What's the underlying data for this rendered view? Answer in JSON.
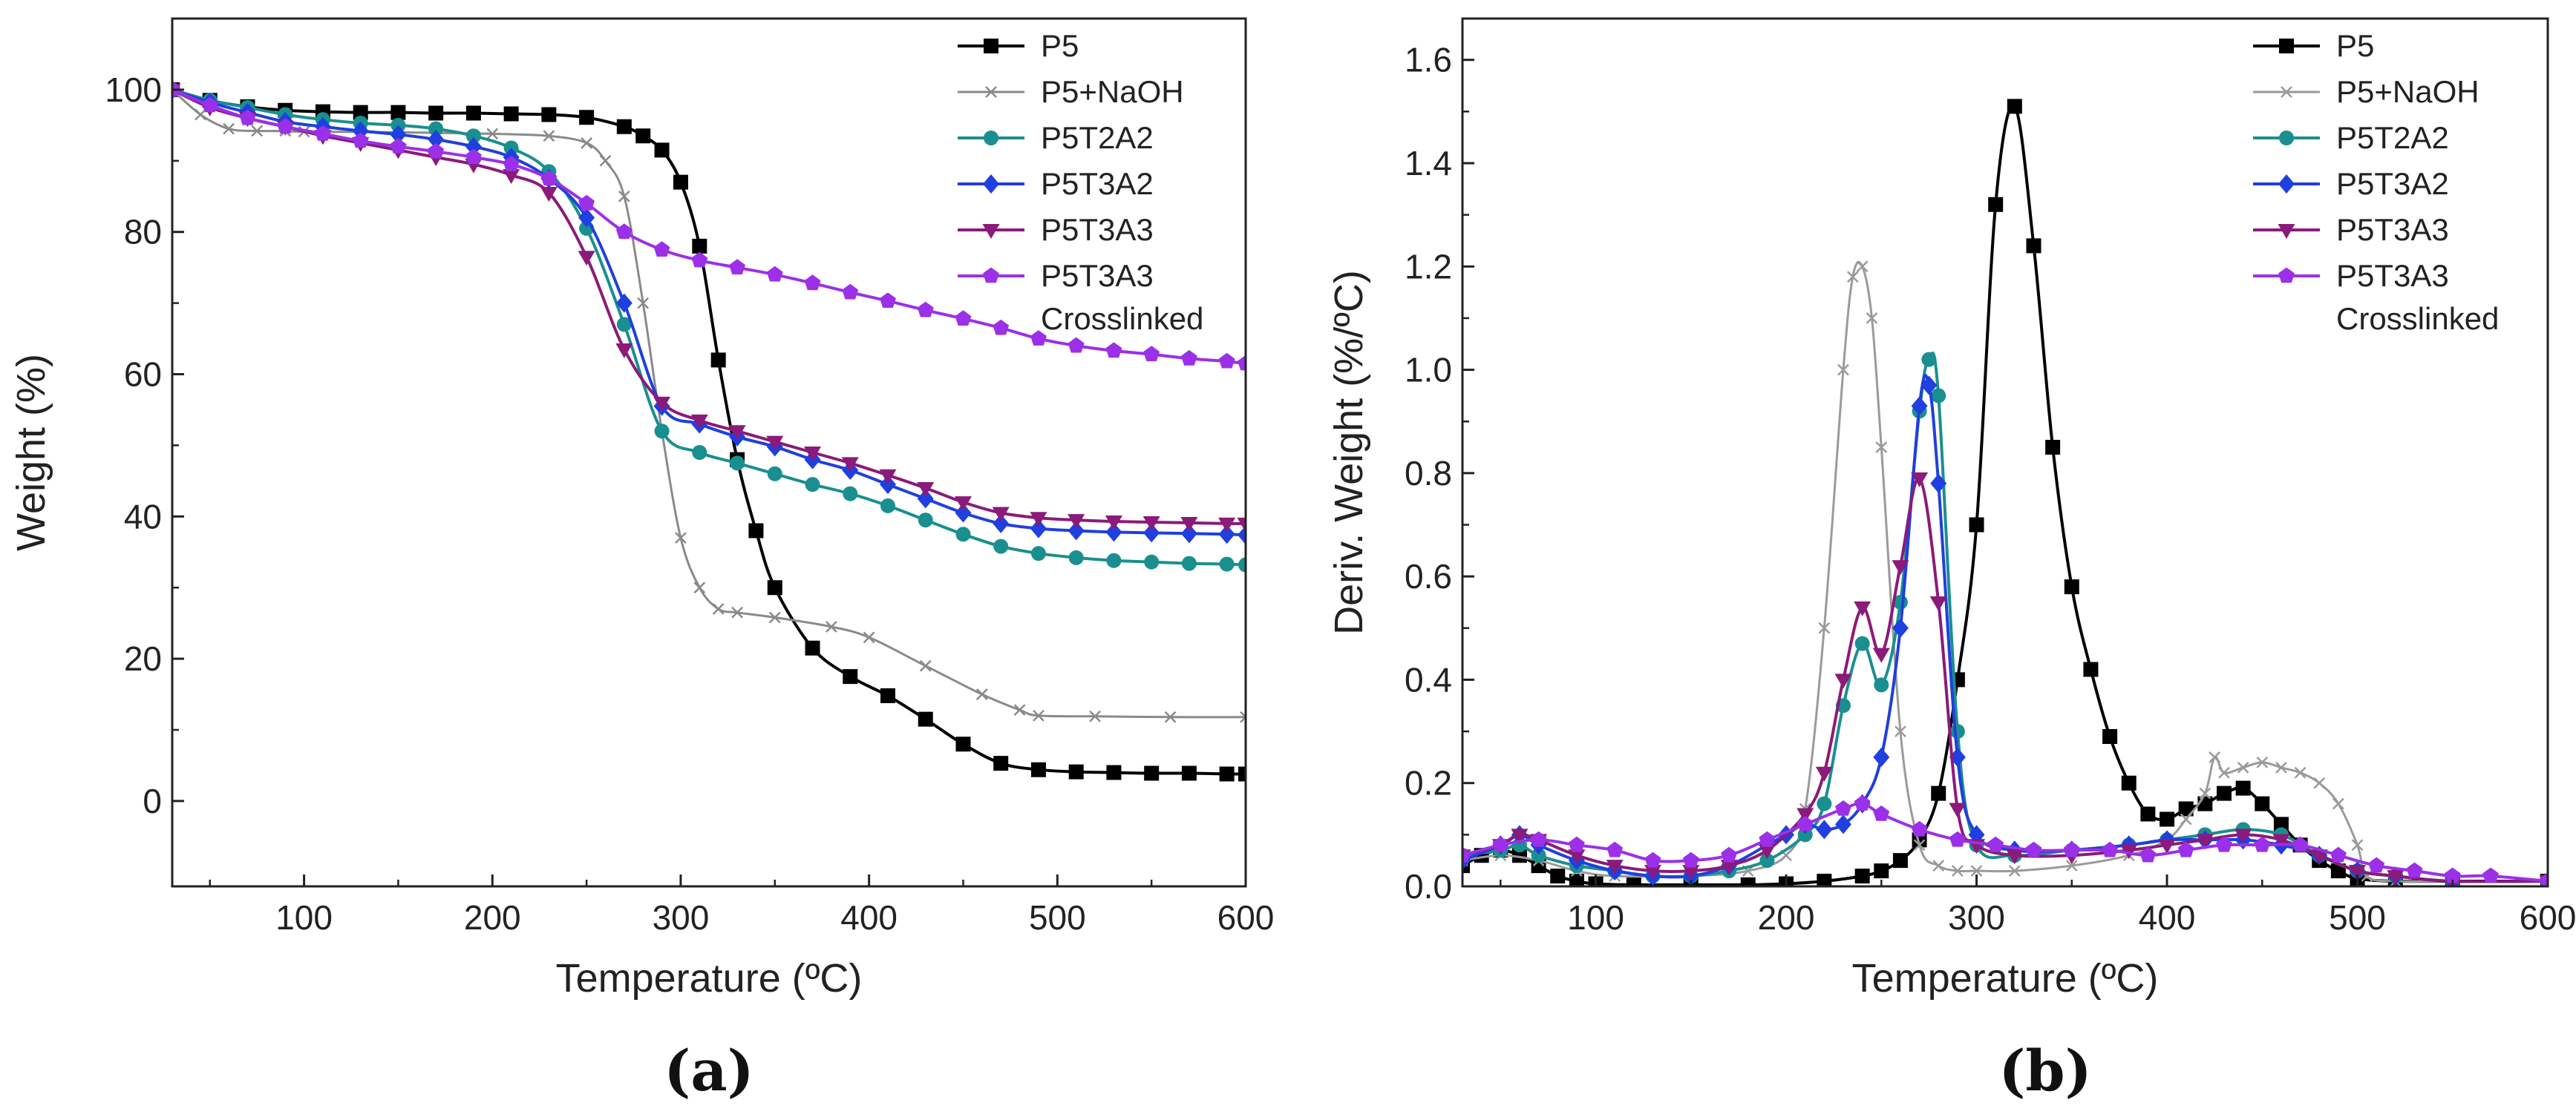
{
  "chart_data": [
    {
      "type": "line",
      "panel_label": "(a)",
      "xlabel": "Temperature (ºC)",
      "ylabel": "Weight (%)",
      "xlim": [
        30,
        600
      ],
      "ylim": [
        -12,
        110
      ],
      "xticks": [
        100,
        200,
        300,
        400,
        500,
        600
      ],
      "yticks": [
        0,
        20,
        40,
        60,
        80,
        100
      ],
      "legend_position": "top-right",
      "series": [
        {
          "name": "P5",
          "color": "#000000",
          "marker": "square",
          "x": [
            30,
            50,
            70,
            90,
            110,
            130,
            150,
            170,
            190,
            210,
            230,
            250,
            270,
            280,
            290,
            300,
            310,
            320,
            330,
            340,
            350,
            370,
            390,
            410,
            430,
            450,
            470,
            490,
            510,
            530,
            550,
            570,
            590,
            600
          ],
          "y": [
            100,
            98.5,
            97.6,
            97.1,
            96.9,
            96.8,
            96.8,
            96.7,
            96.7,
            96.6,
            96.5,
            96.1,
            94.8,
            93.5,
            91.5,
            87,
            78,
            62,
            48,
            38,
            30,
            21.5,
            17.5,
            14.8,
            11.5,
            8,
            5.3,
            4.4,
            4.1,
            4,
            3.9,
            3.9,
            3.8,
            3.8
          ]
        },
        {
          "name": "P5+NaOH",
          "color": "#8a8a8a",
          "marker": "x",
          "x": [
            30,
            45,
            60,
            75,
            90,
            100,
            150,
            200,
            230,
            250,
            260,
            270,
            280,
            290,
            300,
            310,
            320,
            330,
            350,
            380,
            400,
            430,
            460,
            480,
            490,
            520,
            560,
            600
          ],
          "y": [
            100,
            96.5,
            94.5,
            94.2,
            94.2,
            94.1,
            94,
            93.8,
            93.5,
            92.5,
            90,
            85,
            70,
            52,
            37,
            30,
            27,
            26.5,
            25.8,
            24.5,
            23,
            19,
            15,
            12.8,
            12,
            11.9,
            11.8,
            11.8
          ]
        },
        {
          "name": "P5T2A2",
          "color": "#1a8f8f",
          "marker": "circle",
          "x": [
            30,
            50,
            70,
            90,
            110,
            130,
            150,
            170,
            190,
            210,
            230,
            250,
            270,
            290,
            310,
            330,
            350,
            370,
            390,
            410,
            430,
            450,
            470,
            490,
            510,
            530,
            550,
            570,
            590,
            600
          ],
          "y": [
            100,
            98.5,
            97.5,
            96.5,
            95.8,
            95.3,
            95,
            94.5,
            93.5,
            91.8,
            88.5,
            80.5,
            67,
            52,
            49,
            47.5,
            46,
            44.5,
            43.2,
            41.5,
            39.5,
            37.5,
            35.8,
            34.8,
            34.2,
            33.8,
            33.6,
            33.4,
            33.3,
            33.2
          ]
        },
        {
          "name": "P5T3A2",
          "color": "#1f3fe0",
          "marker": "diamond",
          "x": [
            30,
            50,
            70,
            90,
            110,
            130,
            150,
            170,
            190,
            210,
            230,
            250,
            270,
            290,
            310,
            330,
            350,
            370,
            390,
            410,
            430,
            450,
            470,
            490,
            510,
            530,
            550,
            570,
            590,
            600
          ],
          "y": [
            100,
            98.2,
            96.8,
            95.5,
            94.8,
            94.2,
            93.7,
            93,
            92,
            90.5,
            87.5,
            82,
            70,
            55.5,
            53,
            51.2,
            49.8,
            48,
            46.5,
            44.5,
            42.5,
            40.5,
            39,
            38.3,
            38,
            37.8,
            37.7,
            37.6,
            37.5,
            37.4
          ]
        },
        {
          "name": "P5T3A3",
          "color": "#8b1a7a",
          "marker": "triangle-down",
          "x": [
            30,
            50,
            70,
            90,
            110,
            130,
            150,
            170,
            190,
            210,
            230,
            250,
            270,
            290,
            310,
            330,
            350,
            370,
            390,
            410,
            430,
            450,
            470,
            490,
            510,
            530,
            550,
            570,
            590,
            600
          ],
          "y": [
            100,
            97.5,
            96,
            94.8,
            93.5,
            92.5,
            91.5,
            90.5,
            89.5,
            88,
            85.5,
            76.5,
            63.5,
            56,
            53.5,
            52,
            50.5,
            49,
            47.5,
            45.8,
            44,
            42,
            40.5,
            39.8,
            39.5,
            39.3,
            39.2,
            39.1,
            39,
            39
          ]
        },
        {
          "name": "P5T3A3 Crosslinked",
          "color": "#9b30e8",
          "marker": "pentagon",
          "x": [
            30,
            50,
            70,
            90,
            110,
            130,
            150,
            170,
            190,
            210,
            230,
            250,
            270,
            290,
            310,
            330,
            350,
            370,
            390,
            410,
            430,
            450,
            470,
            490,
            510,
            530,
            550,
            570,
            590,
            600
          ],
          "y": [
            100,
            97.8,
            96,
            94.8,
            93.8,
            92.8,
            92,
            91.3,
            90.5,
            89.5,
            87.5,
            84,
            80,
            77.5,
            76,
            75,
            74,
            72.8,
            71.5,
            70.3,
            69,
            67.8,
            66.5,
            65,
            64,
            63.3,
            62.8,
            62.2,
            61.8,
            61.5
          ]
        }
      ]
    },
    {
      "type": "line",
      "panel_label": "(b)",
      "xlabel": "Temperature (ºC)",
      "ylabel": "Deriv. Weight (%/ºC)",
      "xlim": [
        30,
        600
      ],
      "ylim": [
        0,
        1.68
      ],
      "xticks": [
        100,
        200,
        300,
        400,
        500,
        600
      ],
      "yticks": [
        0.0,
        0.2,
        0.4,
        0.6,
        0.8,
        1.0,
        1.2,
        1.4,
        1.6
      ],
      "legend_position": "top-right",
      "series": [
        {
          "name": "P5",
          "color": "#000000",
          "marker": "square",
          "x": [
            30,
            40,
            50,
            60,
            70,
            80,
            90,
            100,
            120,
            150,
            180,
            200,
            220,
            240,
            250,
            260,
            270,
            280,
            290,
            300,
            310,
            320,
            330,
            340,
            350,
            360,
            370,
            380,
            390,
            400,
            410,
            420,
            430,
            440,
            450,
            460,
            470,
            480,
            490,
            500,
            520,
            550,
            600
          ],
          "y": [
            0.04,
            0.06,
            0.07,
            0.06,
            0.04,
            0.02,
            0.01,
            0.005,
            0.003,
            0.003,
            0.003,
            0.005,
            0.01,
            0.02,
            0.03,
            0.05,
            0.09,
            0.18,
            0.4,
            0.7,
            1.32,
            1.51,
            1.24,
            0.85,
            0.58,
            0.42,
            0.29,
            0.2,
            0.14,
            0.13,
            0.15,
            0.16,
            0.18,
            0.19,
            0.16,
            0.12,
            0.08,
            0.05,
            0.03,
            0.015,
            0.01,
            0.01,
            0.01
          ]
        },
        {
          "name": "P5+NaOH",
          "color": "#9a9a9a",
          "marker": "x",
          "x": [
            30,
            50,
            70,
            90,
            110,
            150,
            180,
            200,
            210,
            220,
            230,
            235,
            240,
            245,
            250,
            260,
            270,
            280,
            290,
            300,
            320,
            350,
            380,
            400,
            410,
            420,
            425,
            430,
            440,
            450,
            460,
            470,
            480,
            490,
            500,
            505,
            520,
            550,
            600
          ],
          "y": [
            0.05,
            0.06,
            0.05,
            0.03,
            0.02,
            0.02,
            0.03,
            0.06,
            0.15,
            0.5,
            1.0,
            1.18,
            1.2,
            1.1,
            0.85,
            0.3,
            0.08,
            0.04,
            0.03,
            0.03,
            0.03,
            0.04,
            0.06,
            0.09,
            0.13,
            0.18,
            0.25,
            0.22,
            0.23,
            0.24,
            0.23,
            0.22,
            0.2,
            0.16,
            0.08,
            0.02,
            0.01,
            0.01,
            0.01
          ]
        },
        {
          "name": "P5T2A2",
          "color": "#1a8f8f",
          "marker": "circle",
          "x": [
            30,
            50,
            60,
            70,
            90,
            110,
            130,
            150,
            170,
            190,
            210,
            220,
            230,
            240,
            250,
            260,
            270,
            275,
            280,
            290,
            300,
            320,
            350,
            380,
            400,
            420,
            440,
            460,
            480,
            500,
            520,
            550,
            600
          ],
          "y": [
            0.06,
            0.07,
            0.08,
            0.06,
            0.04,
            0.03,
            0.02,
            0.02,
            0.03,
            0.05,
            0.1,
            0.16,
            0.35,
            0.47,
            0.39,
            0.55,
            0.92,
            1.02,
            0.95,
            0.3,
            0.08,
            0.06,
            0.07,
            0.08,
            0.09,
            0.1,
            0.11,
            0.1,
            0.06,
            0.03,
            0.02,
            0.01,
            0.01
          ]
        },
        {
          "name": "P5T3A2",
          "color": "#1f3fe0",
          "marker": "diamond",
          "x": [
            30,
            50,
            60,
            70,
            90,
            110,
            130,
            150,
            170,
            190,
            200,
            210,
            220,
            230,
            240,
            250,
            260,
            270,
            275,
            280,
            290,
            300,
            320,
            350,
            380,
            400,
            420,
            440,
            460,
            480,
            500,
            520,
            550,
            600
          ],
          "y": [
            0.05,
            0.08,
            0.1,
            0.08,
            0.05,
            0.03,
            0.02,
            0.02,
            0.04,
            0.08,
            0.1,
            0.12,
            0.11,
            0.12,
            0.16,
            0.25,
            0.5,
            0.93,
            0.97,
            0.78,
            0.25,
            0.1,
            0.07,
            0.07,
            0.08,
            0.09,
            0.09,
            0.09,
            0.08,
            0.06,
            0.03,
            0.02,
            0.01,
            0.01
          ]
        },
        {
          "name": "P5T3A3",
          "color": "#8b1a7a",
          "marker": "triangle-down",
          "x": [
            30,
            50,
            60,
            70,
            90,
            110,
            130,
            150,
            170,
            190,
            210,
            220,
            230,
            240,
            250,
            260,
            270,
            280,
            290,
            300,
            320,
            350,
            380,
            400,
            420,
            440,
            460,
            480,
            500,
            520,
            550,
            600
          ],
          "y": [
            0.06,
            0.08,
            0.1,
            0.09,
            0.06,
            0.04,
            0.03,
            0.03,
            0.04,
            0.07,
            0.14,
            0.22,
            0.4,
            0.54,
            0.45,
            0.62,
            0.79,
            0.55,
            0.15,
            0.08,
            0.06,
            0.06,
            0.07,
            0.08,
            0.09,
            0.1,
            0.09,
            0.06,
            0.03,
            0.02,
            0.01,
            0.01
          ]
        },
        {
          "name": "P5T3A3 Crosslinked",
          "color": "#9b30e8",
          "marker": "pentagon",
          "x": [
            30,
            50,
            70,
            90,
            110,
            130,
            150,
            170,
            190,
            210,
            230,
            240,
            250,
            270,
            290,
            310,
            330,
            350,
            370,
            390,
            410,
            430,
            450,
            470,
            490,
            510,
            530,
            550,
            570,
            600
          ],
          "y": [
            0.06,
            0.08,
            0.09,
            0.08,
            0.07,
            0.05,
            0.05,
            0.06,
            0.09,
            0.12,
            0.15,
            0.16,
            0.14,
            0.11,
            0.09,
            0.08,
            0.07,
            0.07,
            0.07,
            0.06,
            0.07,
            0.08,
            0.08,
            0.08,
            0.06,
            0.04,
            0.03,
            0.02,
            0.02,
            0.01
          ]
        }
      ]
    }
  ]
}
